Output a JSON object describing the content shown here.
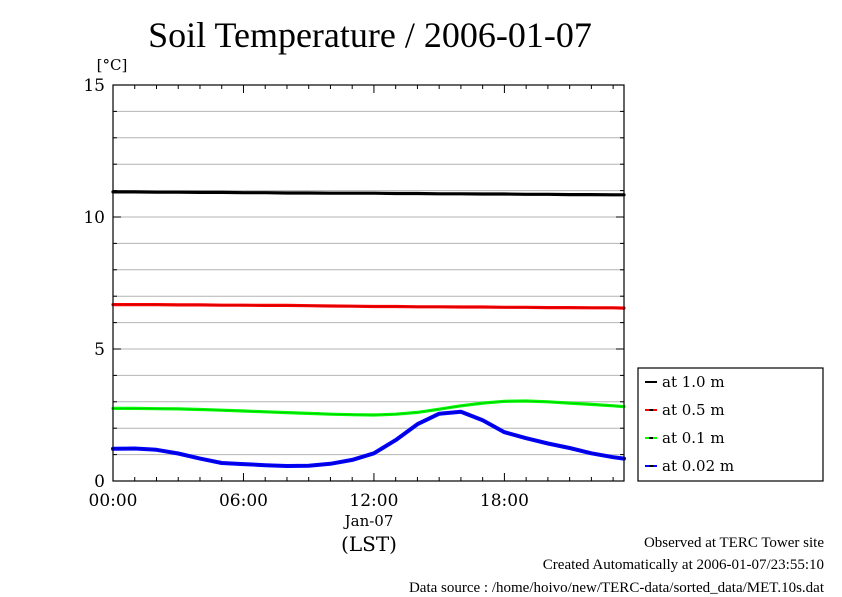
{
  "chart_data": {
    "type": "line",
    "title": "Soil Temperature / 2006-01-07",
    "ylabel": "[°C]",
    "xlabel": "(LST)",
    "date_label": "Jan-07",
    "ylim": [
      0,
      15
    ],
    "xlim": [
      0,
      23.5
    ],
    "yticks": [
      0,
      5,
      10,
      15
    ],
    "xticks": [
      {
        "value": 0,
        "label": "00:00"
      },
      {
        "value": 6,
        "label": "06:00"
      },
      {
        "value": 12,
        "label": "12:00"
      },
      {
        "value": 18,
        "label": "18:00"
      }
    ],
    "grid": true,
    "legend_position": "right",
    "x": [
      0,
      1,
      2,
      3,
      4,
      5,
      6,
      7,
      8,
      9,
      10,
      11,
      12,
      13,
      14,
      15,
      16,
      17,
      18,
      19,
      20,
      21,
      22,
      23,
      23.5
    ],
    "series": [
      {
        "name": "at 1.0 m",
        "color": "#000000",
        "values": [
          10.95,
          10.95,
          10.94,
          10.94,
          10.93,
          10.93,
          10.92,
          10.92,
          10.91,
          10.91,
          10.9,
          10.9,
          10.9,
          10.89,
          10.89,
          10.88,
          10.88,
          10.87,
          10.87,
          10.86,
          10.86,
          10.85,
          10.85,
          10.84,
          10.84
        ]
      },
      {
        "name": "at 0.5 m",
        "color": "#ff0000",
        "values": [
          6.68,
          6.68,
          6.68,
          6.67,
          6.67,
          6.66,
          6.66,
          6.65,
          6.65,
          6.64,
          6.63,
          6.62,
          6.61,
          6.61,
          6.6,
          6.6,
          6.59,
          6.59,
          6.58,
          6.58,
          6.57,
          6.57,
          6.56,
          6.56,
          6.55
        ]
      },
      {
        "name": "at 0.1 m",
        "color": "#00ff00",
        "values": [
          2.75,
          2.75,
          2.74,
          2.73,
          2.71,
          2.68,
          2.65,
          2.62,
          2.59,
          2.56,
          2.53,
          2.51,
          2.5,
          2.53,
          2.6,
          2.72,
          2.85,
          2.95,
          3.02,
          3.03,
          3.0,
          2.95,
          2.9,
          2.85,
          2.82
        ]
      },
      {
        "name": "at 0.02 m",
        "color": "#0000ff",
        "values": [
          1.22,
          1.23,
          1.18,
          1.04,
          0.85,
          0.68,
          0.64,
          0.6,
          0.57,
          0.58,
          0.65,
          0.8,
          1.05,
          1.55,
          2.15,
          2.55,
          2.62,
          2.3,
          1.85,
          1.62,
          1.42,
          1.25,
          1.05,
          0.9,
          0.85
        ]
      }
    ]
  },
  "footer": {
    "site": "Observed at TERC Tower site",
    "created": "Created Automatically at 2006-01-07/23:55:10",
    "source": "Data source : /home/hoivo/new/TERC-data/sorted_data/MET.10s.dat"
  }
}
